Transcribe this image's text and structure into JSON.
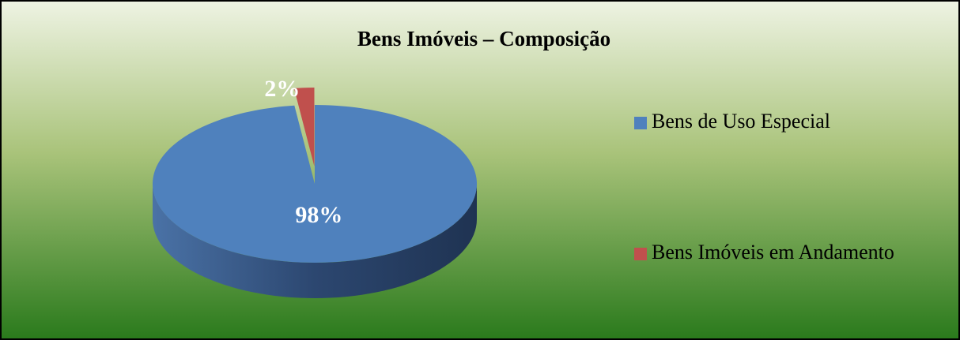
{
  "chart_data": {
    "type": "pie",
    "title": "Bens Imóveis – Composição",
    "categories": [
      "Bens de Uso Especial",
      "Bens Imóveis em Andamento"
    ],
    "values": [
      98,
      2
    ],
    "value_labels": [
      "98%",
      "2%"
    ],
    "colors": [
      "#4f81bd",
      "#c0504d"
    ],
    "legend": "right"
  }
}
